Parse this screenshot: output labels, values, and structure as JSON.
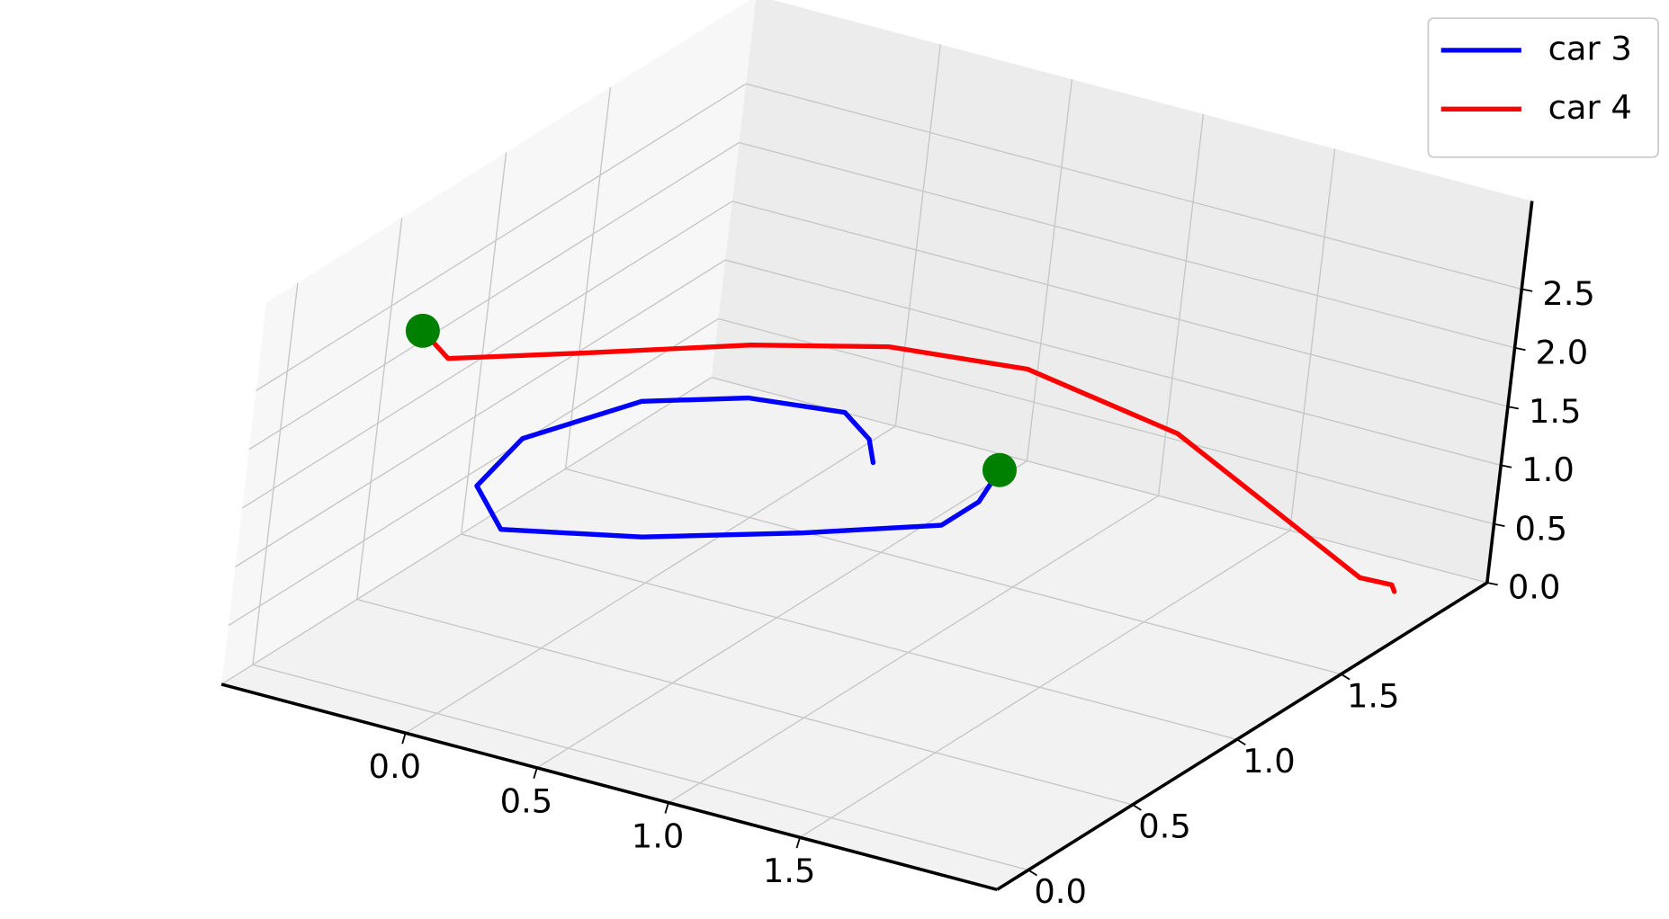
{
  "chart_data": {
    "type": "line3d",
    "series": [
      {
        "name": "car 3",
        "color": "blue",
        "x": [
          0.93,
          1.01,
          1.01,
          0.67,
          0.26,
          -0.15,
          -0.4,
          -0.48,
          -0.32,
          -0.05,
          0.27,
          0.45,
          0.56
        ],
        "y": [
          1.46,
          1.26,
          1.08,
          0.84,
          0.59,
          0.43,
          0.63,
          0.95,
          1.32,
          1.49,
          1.55,
          1.44,
          1.32
        ],
        "z": [
          1.0,
          1.0,
          1.0,
          1.0,
          1.0,
          1.0,
          1.0,
          1.0,
          1.0,
          1.0,
          1.0,
          1.0,
          1.0
        ]
      },
      {
        "name": "car 4",
        "color": "red",
        "x": [
          -0.51,
          -0.44,
          -0.21,
          0.08,
          0.34,
          0.69,
          1.25,
          1.91,
          2.12,
          2.12,
          2.04
        ],
        "y": [
          0.41,
          0.46,
          0.85,
          1.29,
          1.64,
          1.88,
          1.91,
          1.71,
          1.72,
          1.89,
          2.02
        ],
        "z": [
          2.5,
          2.25,
          2.0,
          1.75,
          1.5,
          1.25,
          1.0,
          0.75,
          0.5,
          0.25,
          0.0
        ]
      }
    ],
    "start_marker_color": "green",
    "xlim": [
      -0.7,
      2.25
    ],
    "ylim": [
      -0.15,
      2.2
    ],
    "zlim": [
      0,
      3.25
    ],
    "xticks": [
      {
        "value": 0,
        "label": "0.0"
      },
      0.5,
      {
        "value": 1,
        "label": "1.0"
      },
      1.5
    ],
    "yticks": [
      {
        "value": 0,
        "label": "0.0"
      },
      0.5,
      {
        "value": 1,
        "label": "1.0"
      },
      1.5
    ],
    "zticks": [
      {
        "value": 0,
        "label": "0.0"
      },
      0.5,
      {
        "value": 1,
        "label": "1.0"
      },
      1.5,
      {
        "value": 2,
        "label": "2.0"
      },
      2.5
    ],
    "grid": true,
    "legend": "upper right"
  }
}
